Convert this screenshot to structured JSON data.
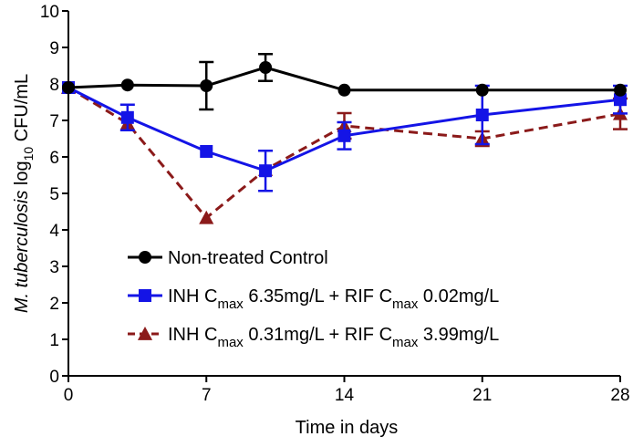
{
  "chart_data": {
    "type": "line",
    "title": "",
    "xlabel": "Time in days",
    "ylabel": {
      "italic": "M. tuberculosis",
      "prefix": " log",
      "subscript": "10",
      "suffix": " CFU/mL"
    },
    "xlim": [
      0,
      28
    ],
    "ylim": [
      0,
      10
    ],
    "xticks": [
      0,
      7,
      14,
      21,
      28
    ],
    "yticks": [
      0,
      1,
      2,
      3,
      4,
      5,
      6,
      7,
      8,
      9,
      10
    ],
    "grid": false,
    "legend_position": "bottom-center",
    "series": [
      {
        "name": "Non-treated Control",
        "legend": {
          "main": "Non-treated Control"
        },
        "color": "#000000",
        "marker": "circle",
        "dash": "solid",
        "x": [
          0,
          3,
          7,
          10,
          14,
          21,
          28
        ],
        "y": [
          7.9,
          7.97,
          7.95,
          8.45,
          7.83,
          7.83,
          7.83
        ],
        "err": [
          0.0,
          0.0,
          0.65,
          0.37,
          0.0,
          0.0,
          0.0
        ]
      },
      {
        "name": "INH Cmax 6.35mg/L + RIF Cmax 0.02mg/L",
        "legend": {
          "p1": "INH C",
          "s1": "max",
          "p2": " 6.35mg/L + RIF C",
          "s2": "max",
          "p3": " 0.02mg/L"
        },
        "color": "#1414e6",
        "marker": "square",
        "dash": "solid",
        "x": [
          0,
          3,
          7,
          10,
          14,
          21,
          28
        ],
        "y": [
          7.9,
          7.08,
          6.15,
          5.62,
          6.58,
          7.15,
          7.57
        ],
        "err": [
          0.0,
          0.35,
          0.0,
          0.55,
          0.37,
          0.8,
          0.38
        ]
      },
      {
        "name": "INH Cmax 0.31mg/L + RIF Cmax 3.99mg/L",
        "legend": {
          "p1": "INH C",
          "s1": "max",
          "p2": " 0.31mg/L + RIF C",
          "s2": "max",
          "p3": " 3.99mg/L"
        },
        "color": "#8b1a1a",
        "marker": "triangle",
        "dash": "dashed",
        "x": [
          0,
          3,
          7,
          10,
          14,
          21,
          28
        ],
        "y": [
          7.9,
          6.92,
          4.33,
          5.65,
          6.85,
          6.5,
          7.18
        ],
        "err": [
          0.0,
          0.0,
          0.0,
          0.0,
          0.35,
          0.2,
          0.42
        ]
      }
    ]
  }
}
